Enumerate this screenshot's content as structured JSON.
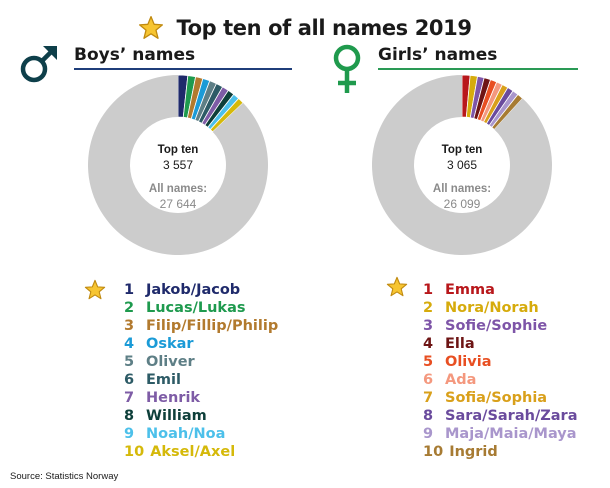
{
  "title": "Top ten of all names 2019",
  "source": "Source: Statistics Norway",
  "chart_data": [
    {
      "type": "pie",
      "donut": true,
      "title": "Boys’ names",
      "center": {
        "top_label": "Top ten",
        "top_value": "3 557",
        "all_label": "All names:",
        "all_value": "27 644"
      },
      "total": 27644,
      "top_total": 3557,
      "remainder_color": "#cccccc",
      "series": [
        {
          "rank": "1",
          "name": "Jakob/Jacob",
          "value": 483,
          "color": "#1f2a6b"
        },
        {
          "rank": "2",
          "name": "Lucas/Lukas",
          "value": 385,
          "color": "#1e9a4e"
        },
        {
          "rank": "3",
          "name": "Filip/Fillip/Philip",
          "value": 365,
          "color": "#b27a2e"
        },
        {
          "rank": "4",
          "name": "Oskar",
          "value": 354,
          "color": "#1b9bd7"
        },
        {
          "rank": "5",
          "name": "Oliver",
          "value": 354,
          "color": "#5e7f86"
        },
        {
          "rank": "6",
          "name": "Emil",
          "value": 343,
          "color": "#2d5b66"
        },
        {
          "rank": "7",
          "name": "Henrik",
          "value": 329,
          "color": "#7e5ca6"
        },
        {
          "rank": "8",
          "name": "William",
          "value": 326,
          "color": "#0e3f3a"
        },
        {
          "rank": "9",
          "name": "Noah/Noa",
          "value": 313,
          "color": "#4cc0ea"
        },
        {
          "rank": "10",
          "name": "Aksel/Axel",
          "value": 305,
          "color": "#d5b90a"
        }
      ]
    },
    {
      "type": "pie",
      "donut": true,
      "title": "Girls’ names",
      "center": {
        "top_label": "Top ten",
        "top_value": "3 065",
        "all_label": "All names:",
        "all_value": "26 099"
      },
      "total": 26099,
      "top_total": 3065,
      "remainder_color": "#cccccc",
      "series": [
        {
          "rank": "1",
          "name": "Emma",
          "value": 376,
          "color": "#b8171b"
        },
        {
          "rank": "2",
          "name": "Nora/Norah",
          "value": 345,
          "color": "#d6ab0c"
        },
        {
          "rank": "3",
          "name": "Sofie/Sophie",
          "value": 313,
          "color": "#7e55a8"
        },
        {
          "rank": "4",
          "name": "Ella",
          "value": 307,
          "color": "#6d1414"
        },
        {
          "rank": "5",
          "name": "Olivia",
          "value": 304,
          "color": "#e84f22"
        },
        {
          "rank": "6",
          "name": "Ada",
          "value": 289,
          "color": "#f4987e"
        },
        {
          "rank": "7",
          "name": "Sofia/Sophia",
          "value": 286,
          "color": "#d9a01b"
        },
        {
          "rank": "8",
          "name": "Sara/Sarah/Zara",
          "value": 284,
          "color": "#6a4b9d"
        },
        {
          "rank": "9",
          "name": "Maja/Maia/Maya",
          "value": 281,
          "color": "#a996cc"
        },
        {
          "rank": "10",
          "name": "Ingrid",
          "value": 280,
          "color": "#a77b33"
        }
      ]
    }
  ]
}
